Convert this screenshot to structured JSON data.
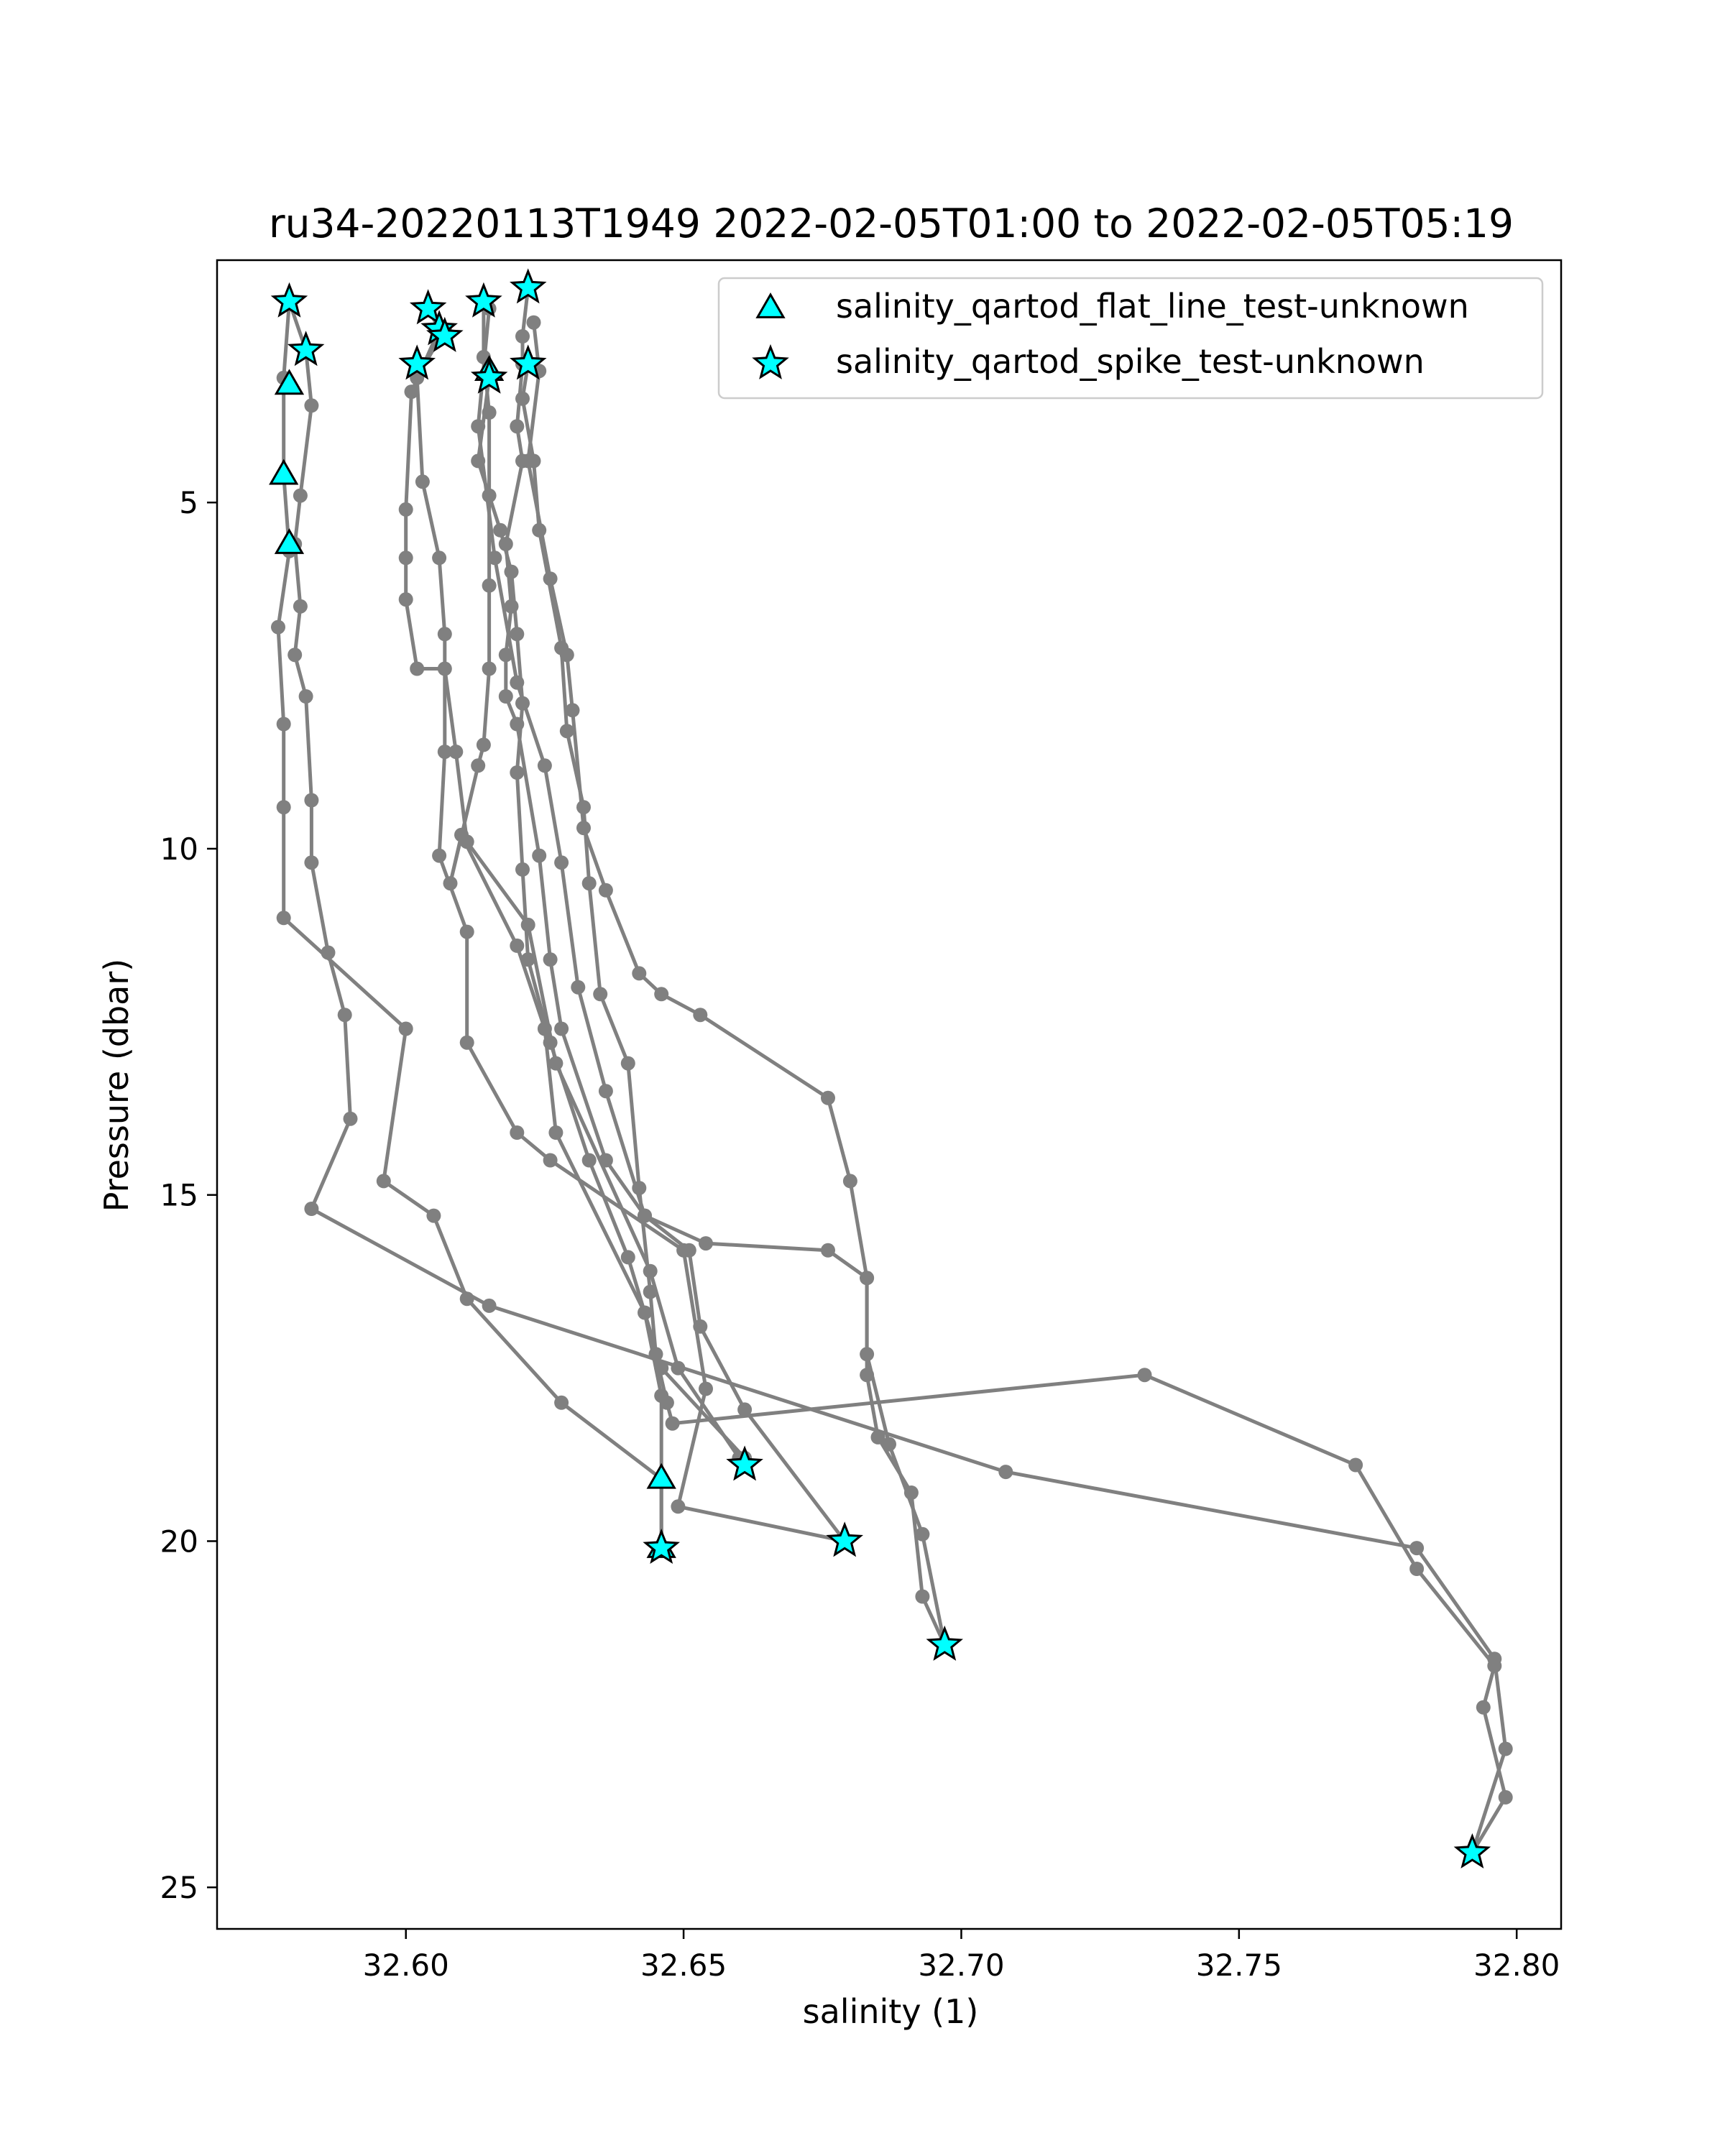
{
  "chart_data": {
    "type": "scatter",
    "title": "ru34-20220113T1949 2022-02-05T01:00 to 2022-02-05T05:19",
    "xlabel": "salinity (1)",
    "ylabel": "Pressure (dbar)",
    "xlim": [
      32.566,
      32.808
    ],
    "ylim": [
      25.6,
      1.5
    ],
    "y_inverted": true,
    "x_ticks": [
      32.6,
      32.65,
      32.7,
      32.75,
      32.8
    ],
    "x_tick_labels": [
      "32.60",
      "32.65",
      "32.70",
      "32.75",
      "32.80"
    ],
    "y_ticks": [
      5,
      10,
      15,
      20,
      25
    ],
    "y_tick_labels": [
      "5",
      "10",
      "15",
      "20",
      "25"
    ],
    "grid": false,
    "legend_position": "top-right",
    "colors": {
      "profile_line": "#808080",
      "marker_fill": "#00ffff",
      "marker_edge": "#000000"
    },
    "series": [
      {
        "type": "line",
        "points": [
          [
            32.579,
            2.1
          ],
          [
            32.582,
            2.8
          ],
          [
            32.583,
            3.6
          ],
          [
            32.581,
            4.9
          ],
          [
            32.58,
            5.6
          ],
          [
            32.581,
            6.5
          ],
          [
            32.58,
            7.2
          ],
          [
            32.582,
            7.8
          ],
          [
            32.583,
            9.3
          ],
          [
            32.583,
            10.2
          ],
          [
            32.586,
            11.5
          ],
          [
            32.589,
            12.4
          ],
          [
            32.59,
            13.9
          ],
          [
            32.583,
            15.2
          ],
          [
            32.615,
            16.6
          ],
          [
            32.708,
            19.0
          ],
          [
            32.782,
            20.1
          ],
          [
            32.796,
            21.7
          ],
          [
            32.798,
            23.0
          ],
          [
            32.792,
            24.5
          ]
        ]
      },
      {
        "type": "line",
        "points": [
          [
            32.579,
            2.1
          ],
          [
            32.578,
            3.2
          ],
          [
            32.578,
            4.6
          ],
          [
            32.579,
            5.7
          ],
          [
            32.577,
            6.8
          ],
          [
            32.578,
            8.2
          ],
          [
            32.578,
            9.4
          ],
          [
            32.578,
            11.0
          ],
          [
            32.6,
            12.6
          ],
          [
            32.596,
            14.8
          ],
          [
            32.605,
            15.3
          ],
          [
            32.611,
            16.5
          ],
          [
            32.628,
            18.0
          ],
          [
            32.646,
            19.1
          ],
          [
            32.646,
            20.1
          ]
        ]
      },
      {
        "type": "line",
        "points": [
          [
            32.604,
            2.2
          ],
          [
            32.606,
            2.5
          ],
          [
            32.601,
            3.4
          ],
          [
            32.6,
            5.1
          ],
          [
            32.6,
            5.8
          ],
          [
            32.6,
            6.4
          ],
          [
            32.602,
            7.4
          ],
          [
            32.607,
            7.4
          ],
          [
            32.609,
            8.6
          ],
          [
            32.611,
            9.9
          ],
          [
            32.622,
            11.1
          ],
          [
            32.627,
            13.1
          ],
          [
            32.644,
            16.1
          ],
          [
            32.649,
            17.5
          ],
          [
            32.66,
            18.8
          ],
          [
            32.661,
            18.9
          ]
        ]
      },
      {
        "type": "line",
        "points": [
          [
            32.607,
            2.5
          ],
          [
            32.602,
            3.2
          ],
          [
            32.603,
            4.7
          ],
          [
            32.606,
            5.8
          ],
          [
            32.607,
            6.9
          ],
          [
            32.607,
            8.6
          ],
          [
            32.606,
            10.1
          ],
          [
            32.611,
            11.2
          ],
          [
            32.611,
            12.8
          ],
          [
            32.62,
            14.1
          ],
          [
            32.626,
            14.5
          ],
          [
            32.65,
            15.8
          ],
          [
            32.654,
            17.8
          ],
          [
            32.649,
            19.5
          ],
          [
            32.679,
            20.0
          ]
        ]
      },
      {
        "type": "line",
        "points": [
          [
            32.614,
            2.1
          ],
          [
            32.614,
            2.9
          ],
          [
            32.615,
            3.7
          ],
          [
            32.615,
            4.9
          ],
          [
            32.615,
            6.2
          ],
          [
            32.615,
            7.4
          ],
          [
            32.614,
            8.5
          ],
          [
            32.613,
            8.8
          ],
          [
            32.608,
            10.5
          ],
          [
            32.61,
            9.8
          ],
          [
            32.62,
            11.4
          ],
          [
            32.625,
            12.6
          ],
          [
            32.627,
            14.1
          ],
          [
            32.643,
            16.7
          ],
          [
            32.646,
            17.9
          ],
          [
            32.646,
            19.1
          ],
          [
            32.646,
            20.1
          ]
        ]
      },
      {
        "type": "line",
        "points": [
          [
            32.615,
            3.2
          ],
          [
            32.613,
            4.4
          ],
          [
            32.617,
            5.4
          ],
          [
            32.619,
            6.0
          ],
          [
            32.62,
            6.9
          ],
          [
            32.621,
            7.9
          ],
          [
            32.62,
            8.9
          ],
          [
            32.621,
            10.3
          ],
          [
            32.622,
            11.6
          ],
          [
            32.626,
            12.8
          ],
          [
            32.633,
            14.5
          ],
          [
            32.64,
            15.9
          ],
          [
            32.646,
            17.5
          ],
          [
            32.661,
            18.8
          ]
        ]
      },
      {
        "type": "line",
        "points": [
          [
            32.622,
            1.9
          ],
          [
            32.621,
            2.6
          ],
          [
            32.621,
            3.0
          ],
          [
            32.62,
            3.9
          ],
          [
            32.621,
            4.4
          ],
          [
            32.618,
            5.6
          ],
          [
            32.619,
            6.5
          ],
          [
            32.618,
            7.2
          ],
          [
            32.618,
            7.8
          ],
          [
            32.62,
            8.2
          ],
          [
            32.624,
            10.1
          ],
          [
            32.626,
            11.6
          ],
          [
            32.628,
            12.6
          ],
          [
            32.636,
            14.5
          ],
          [
            32.643,
            15.3
          ],
          [
            32.654,
            15.7
          ],
          [
            32.676,
            15.8
          ],
          [
            32.683,
            16.2
          ],
          [
            32.683,
            17.3
          ],
          [
            32.687,
            18.6
          ],
          [
            32.693,
            19.9
          ],
          [
            32.697,
            21.5
          ]
        ]
      },
      {
        "type": "line",
        "points": [
          [
            32.622,
            3.0
          ],
          [
            32.621,
            3.5
          ],
          [
            32.623,
            4.4
          ],
          [
            32.624,
            5.4
          ],
          [
            32.628,
            7.1
          ],
          [
            32.629,
            8.3
          ],
          [
            32.632,
            9.4
          ],
          [
            32.633,
            10.5
          ],
          [
            32.635,
            12.1
          ],
          [
            32.64,
            13.1
          ],
          [
            32.642,
            14.9
          ],
          [
            32.644,
            16.4
          ],
          [
            32.645,
            17.3
          ],
          [
            32.647,
            18.0
          ],
          [
            32.648,
            18.3
          ],
          [
            32.733,
            17.6
          ],
          [
            32.771,
            18.9
          ],
          [
            32.782,
            20.4
          ],
          [
            32.796,
            21.8
          ],
          [
            32.794,
            22.4
          ],
          [
            32.798,
            23.7
          ],
          [
            32.792,
            24.5
          ]
        ]
      },
      {
        "type": "line",
        "points": [
          [
            32.615,
            2.2
          ],
          [
            32.613,
            3.9
          ],
          [
            32.616,
            5.8
          ],
          [
            32.62,
            7.6
          ],
          [
            32.625,
            8.8
          ],
          [
            32.628,
            10.2
          ],
          [
            32.631,
            12.0
          ],
          [
            32.636,
            13.5
          ],
          [
            32.643,
            15.3
          ],
          [
            32.651,
            15.8
          ],
          [
            32.653,
            16.9
          ],
          [
            32.661,
            18.1
          ],
          [
            32.679,
            20.0
          ]
        ]
      },
      {
        "type": "line",
        "points": [
          [
            32.623,
            2.4
          ],
          [
            32.624,
            3.1
          ],
          [
            32.622,
            4.4
          ],
          [
            32.626,
            6.1
          ],
          [
            32.629,
            7.2
          ],
          [
            32.63,
            8.0
          ],
          [
            32.632,
            9.7
          ],
          [
            32.636,
            10.6
          ],
          [
            32.642,
            11.8
          ],
          [
            32.646,
            12.1
          ],
          [
            32.653,
            12.4
          ],
          [
            32.676,
            13.6
          ],
          [
            32.68,
            14.8
          ],
          [
            32.683,
            16.2
          ],
          [
            32.683,
            17.6
          ],
          [
            32.685,
            18.5
          ],
          [
            32.691,
            19.3
          ],
          [
            32.693,
            20.8
          ],
          [
            32.697,
            21.5
          ]
        ]
      }
    ],
    "flat_line_markers": [
      [
        32.579,
        3.3
      ],
      [
        32.578,
        4.6
      ],
      [
        32.579,
        5.6
      ],
      [
        32.615,
        3.1
      ],
      [
        32.646,
        19.1
      ],
      [
        32.646,
        20.1
      ]
    ],
    "spike_markers": [
      [
        32.579,
        2.1
      ],
      [
        32.582,
        2.8
      ],
      [
        32.604,
        2.2
      ],
      [
        32.606,
        2.5
      ],
      [
        32.607,
        2.6
      ],
      [
        32.602,
        3.0
      ],
      [
        32.614,
        2.1
      ],
      [
        32.615,
        3.2
      ],
      [
        32.622,
        1.9
      ],
      [
        32.622,
        3.0
      ],
      [
        32.646,
        20.1
      ],
      [
        32.661,
        18.9
      ],
      [
        32.679,
        20.0
      ],
      [
        32.697,
        21.5
      ],
      [
        32.792,
        24.5
      ]
    ],
    "legend": [
      {
        "label": "salinity_qartod_flat_line_test-unknown",
        "marker": "triangle"
      },
      {
        "label": "salinity_qartod_spike_test-unknown",
        "marker": "star"
      }
    ]
  }
}
